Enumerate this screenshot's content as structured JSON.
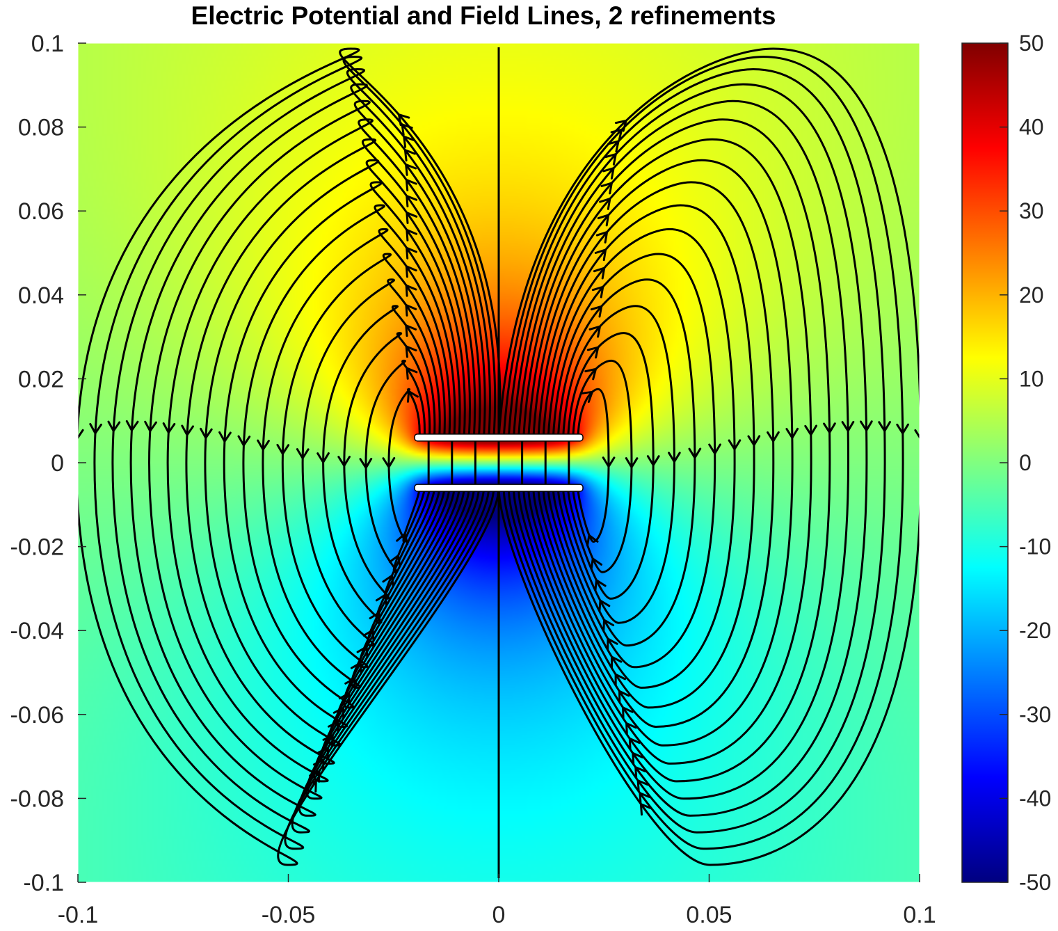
{
  "chart_data": {
    "type": "heatmap",
    "subtype": "potential field with streamlines",
    "title": "Electric Potential and Field Lines, 2 refinements",
    "xlabel": "",
    "ylabel": "",
    "xlim": [
      -0.1,
      0.1
    ],
    "ylim": [
      -0.1,
      0.1
    ],
    "x_ticks": [
      "-0.1",
      "-0.05",
      "0",
      "0.05",
      "0.1"
    ],
    "y_ticks": [
      "0.1",
      "0.08",
      "0.06",
      "0.04",
      "0.02",
      "0",
      "-0.02",
      "-0.04",
      "-0.06",
      "-0.08",
      "-0.1"
    ],
    "colorbar": {
      "colormap": "jet",
      "range": [
        -50,
        50
      ],
      "ticks": [
        "50",
        "40",
        "30",
        "20",
        "10",
        "0",
        "-10",
        "-20",
        "-30",
        "-40",
        "-50"
      ]
    },
    "plates": [
      {
        "potential": 50,
        "x_range": [
          -0.02,
          0.02
        ],
        "y": 0.006
      },
      {
        "potential": -50,
        "x_range": [
          -0.02,
          0.02
        ],
        "y": -0.006
      }
    ],
    "field_lines": {
      "color": "#000000",
      "arrows": true,
      "count_per_side": 17
    },
    "grid": false,
    "colors": {
      "positive": "#800000",
      "zero": "#80ff80",
      "negative": "#000080",
      "lines": "#000000"
    }
  }
}
